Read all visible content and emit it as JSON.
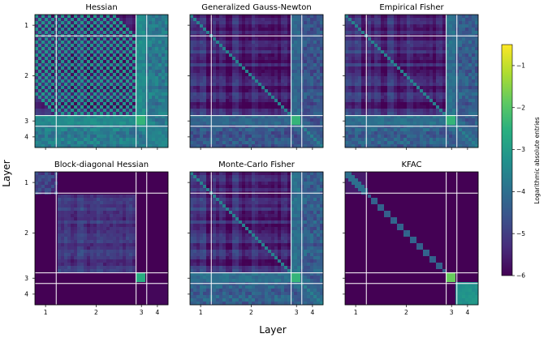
{
  "chart_data": {
    "type": "heatmap",
    "xlabel": "Layer",
    "ylabel": "Layer",
    "colorbar": {
      "label": "Logarithmic absolute entries",
      "range": [
        -6,
        -0.5
      ],
      "ticks": [
        "−6",
        "−5",
        "−4",
        "−3",
        "−2",
        "−1"
      ],
      "tick_values": [
        -6,
        -5,
        -4,
        -3,
        -2,
        -1
      ],
      "colormap": "viridis"
    },
    "layer_ticks": [
      "1",
      "2",
      "3",
      "4"
    ],
    "layer_tick_fractions": [
      0.08,
      0.46,
      0.8,
      0.92
    ],
    "layer_boundaries": [
      0.16,
      0.76,
      0.84
    ],
    "panels": [
      {
        "title": "Hessian",
        "pattern": "full-hessian",
        "base_log": -5.2,
        "band_log": -3.4
      },
      {
        "title": "Generalized Gauss-Newton",
        "pattern": "dense",
        "base_log": -5.5,
        "band_log": -4.2
      },
      {
        "title": "Empirical Fisher",
        "pattern": "dense",
        "base_log": -5.4,
        "band_log": -4.0
      },
      {
        "title": "Block-diagonal Hessian",
        "pattern": "block-diagonal",
        "base_log": -6.0,
        "band_log": -3.3
      },
      {
        "title": "Monte-Carlo Fisher",
        "pattern": "dense",
        "base_log": -5.4,
        "band_log": -4.0
      },
      {
        "title": "KFAC",
        "pattern": "kronecker",
        "base_log": -6.0,
        "band_log": -3.0
      }
    ]
  }
}
